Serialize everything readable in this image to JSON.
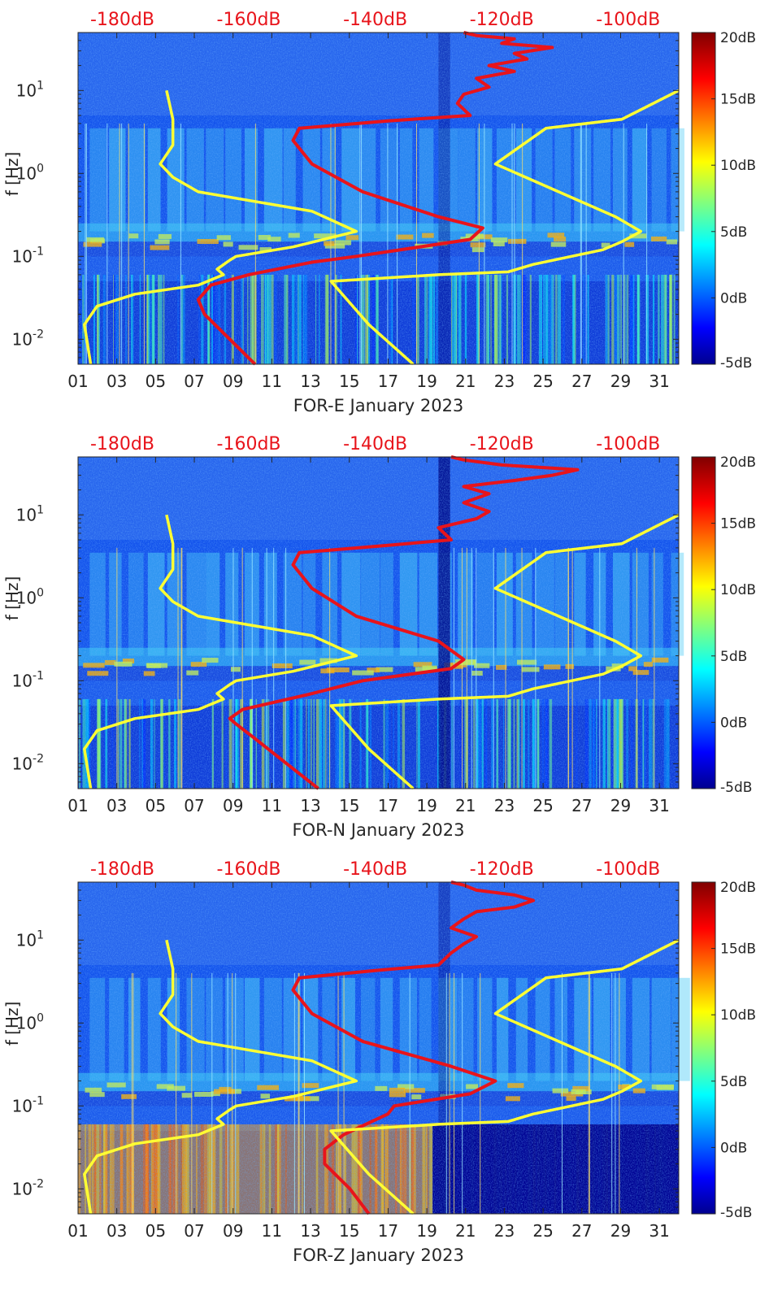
{
  "chart_data": [
    {
      "type": "heatmap",
      "station": "FOR-E",
      "xlabel": "FOR-E January 2023",
      "ylabel": "f [Hz]",
      "x_ticks": [
        "01",
        "03",
        "05",
        "07",
        "09",
        "11",
        "13",
        "15",
        "17",
        "19",
        "21",
        "23",
        "25",
        "27",
        "29",
        "31"
      ],
      "y_ticks": [
        "10^-2",
        "10^-1",
        "10^0",
        "10^1"
      ],
      "y_range_hz": [
        0.005,
        50
      ],
      "x_range_day": [
        1,
        32
      ],
      "top_axis_ticks": [
        "-180dB",
        "-160dB",
        "-140dB",
        "-120dB",
        "-100dB"
      ],
      "top_axis_range_db": [
        -187,
        -92
      ],
      "colorbar_ticks": [
        "20dB",
        "15dB",
        "10dB",
        "5dB",
        "0dB",
        "-5dB"
      ],
      "colorbar_range_db": [
        -5,
        20
      ],
      "colorscale": "jet",
      "series": [
        {
          "color": "#e8141b",
          "kind": "median PSD (dB, top axis)",
          "points": [
            [
              -159,
              0.005
            ],
            [
              -163,
              0.01
            ],
            [
              -167,
              0.02
            ],
            [
              -168,
              0.03
            ],
            [
              -166,
              0.045
            ],
            [
              -160,
              0.06
            ],
            [
              -150,
              0.085
            ],
            [
              -143,
              0.1
            ],
            [
              -125,
              0.16
            ],
            [
              -123,
              0.22
            ],
            [
              -130,
              0.3
            ],
            [
              -142,
              0.6
            ],
            [
              -150,
              1.3
            ],
            [
              -153,
              2.5
            ],
            [
              -152,
              3.5
            ],
            [
              -138,
              4.3
            ],
            [
              -125,
              5
            ],
            [
              -127,
              7
            ],
            [
              -126,
              9
            ],
            [
              -122,
              11
            ],
            [
              -124,
              14
            ],
            [
              -118,
              17
            ],
            [
              -122,
              20
            ],
            [
              -116,
              24
            ],
            [
              -118,
              28
            ],
            [
              -112,
              33
            ],
            [
              -120,
              37
            ],
            [
              -118,
              42
            ],
            [
              -124,
              46
            ],
            [
              -126,
              50
            ]
          ]
        },
        {
          "color": "#ffff33",
          "kind": "low noise model (dB, top axis)",
          "points": [
            [
              -185,
              0.005
            ],
            [
              -186,
              0.015
            ],
            [
              -184,
              0.025
            ],
            [
              -178,
              0.035
            ],
            [
              -168,
              0.045
            ],
            [
              -164,
              0.06
            ],
            [
              -165,
              0.07
            ],
            [
              -163,
              0.09
            ],
            [
              -162,
              0.1
            ],
            [
              -153,
              0.13
            ],
            [
              -143,
              0.2
            ],
            [
              -150,
              0.35
            ],
            [
              -168,
              0.6
            ],
            [
              -172,
              0.9
            ],
            [
              -174,
              1.3
            ],
            [
              -172,
              2.2
            ],
            [
              -172,
              4.5
            ],
            [
              -173,
              10
            ]
          ]
        },
        {
          "color": "#ffff33",
          "kind": "high noise model (dB, top axis)",
          "points": [
            [
              -134,
              0.005
            ],
            [
              -141,
              0.015
            ],
            [
              -147,
              0.05
            ],
            [
              -130,
              0.06
            ],
            [
              -119,
              0.065
            ],
            [
              -115,
              0.08
            ],
            [
              -104,
              0.12
            ],
            [
              -101,
              0.15
            ],
            [
              -98,
              0.2
            ],
            [
              -102,
              0.3
            ],
            [
              -121,
              1.3
            ],
            [
              -113,
              3.5
            ],
            [
              -101,
              4.5
            ],
            [
              -92,
              10
            ]
          ]
        }
      ]
    },
    {
      "type": "heatmap",
      "station": "FOR-N",
      "xlabel": "FOR-N January 2023",
      "ylabel": "f [Hz]",
      "x_ticks": [
        "01",
        "03",
        "05",
        "07",
        "09",
        "11",
        "13",
        "15",
        "17",
        "19",
        "21",
        "23",
        "25",
        "27",
        "29",
        "31"
      ],
      "y_ticks": [
        "10^-2",
        "10^-1",
        "10^0",
        "10^1"
      ],
      "y_range_hz": [
        0.005,
        50
      ],
      "x_range_day": [
        1,
        32
      ],
      "top_axis_ticks": [
        "-180dB",
        "-160dB",
        "-140dB",
        "-120dB",
        "-100dB"
      ],
      "top_axis_range_db": [
        -187,
        -92
      ],
      "colorbar_ticks": [
        "20dB",
        "15dB",
        "10dB",
        "5dB",
        "0dB",
        "-5dB"
      ],
      "colorbar_range_db": [
        -5,
        20
      ],
      "colorscale": "jet",
      "series": [
        {
          "color": "#e8141b",
          "kind": "median PSD (dB, top axis)",
          "points": [
            [
              -149,
              0.005
            ],
            [
              -154,
              0.01
            ],
            [
              -159,
              0.02
            ],
            [
              -162,
              0.03
            ],
            [
              -163,
              0.035
            ],
            [
              -161,
              0.045
            ],
            [
              -150,
              0.07
            ],
            [
              -142,
              0.1
            ],
            [
              -128,
              0.14
            ],
            [
              -126,
              0.18
            ],
            [
              -130,
              0.3
            ],
            [
              -143,
              0.6
            ],
            [
              -150,
              1.3
            ],
            [
              -153,
              2.5
            ],
            [
              -152,
              3.5
            ],
            [
              -138,
              4.3
            ],
            [
              -128,
              5
            ],
            [
              -130,
              7
            ],
            [
              -124,
              9
            ],
            [
              -122,
              11
            ],
            [
              -126,
              14
            ],
            [
              -122,
              18
            ],
            [
              -126,
              22
            ],
            [
              -118,
              26
            ],
            [
              -112,
              30
            ],
            [
              -108,
              35
            ],
            [
              -120,
              40
            ],
            [
              -126,
              46
            ],
            [
              -128,
              50
            ]
          ]
        },
        {
          "color": "#ffff33",
          "kind": "low noise model (dB, top axis)",
          "points": [
            [
              -185,
              0.005
            ],
            [
              -186,
              0.015
            ],
            [
              -184,
              0.025
            ],
            [
              -178,
              0.035
            ],
            [
              -168,
              0.045
            ],
            [
              -164,
              0.06
            ],
            [
              -165,
              0.07
            ],
            [
              -163,
              0.09
            ],
            [
              -162,
              0.1
            ],
            [
              -153,
              0.13
            ],
            [
              -143,
              0.2
            ],
            [
              -150,
              0.35
            ],
            [
              -168,
              0.6
            ],
            [
              -172,
              0.9
            ],
            [
              -174,
              1.3
            ],
            [
              -172,
              2.2
            ],
            [
              -172,
              4.5
            ],
            [
              -173,
              10
            ]
          ]
        },
        {
          "color": "#ffff33",
          "kind": "high noise model (dB, top axis)",
          "points": [
            [
              -134,
              0.005
            ],
            [
              -141,
              0.015
            ],
            [
              -147,
              0.05
            ],
            [
              -130,
              0.06
            ],
            [
              -119,
              0.065
            ],
            [
              -115,
              0.08
            ],
            [
              -104,
              0.12
            ],
            [
              -101,
              0.15
            ],
            [
              -98,
              0.2
            ],
            [
              -102,
              0.3
            ],
            [
              -121,
              1.3
            ],
            [
              -113,
              3.5
            ],
            [
              -101,
              4.5
            ],
            [
              -92,
              10
            ]
          ]
        }
      ]
    },
    {
      "type": "heatmap",
      "station": "FOR-Z",
      "xlabel": "FOR-Z January 2023",
      "ylabel": "f [Hz]",
      "x_ticks": [
        "01",
        "03",
        "05",
        "07",
        "09",
        "11",
        "13",
        "15",
        "17",
        "19",
        "21",
        "23",
        "25",
        "27",
        "29",
        "31"
      ],
      "y_ticks": [
        "10^-2",
        "10^-1",
        "10^0",
        "10^1"
      ],
      "y_range_hz": [
        0.005,
        50
      ],
      "x_range_day": [
        1,
        32
      ],
      "top_axis_ticks": [
        "-180dB",
        "-160dB",
        "-140dB",
        "-120dB",
        "-100dB"
      ],
      "top_axis_range_db": [
        -187,
        -92
      ],
      "colorbar_ticks": [
        "20dB",
        "15dB",
        "10dB",
        "5dB",
        "0dB",
        "-5dB"
      ],
      "colorbar_range_db": [
        -5,
        20
      ],
      "colorscale": "jet",
      "series": [
        {
          "color": "#e8141b",
          "kind": "median PSD (dB, top axis)",
          "points": [
            [
              -141,
              0.005
            ],
            [
              -144,
              0.01
            ],
            [
              -148,
              0.02
            ],
            [
              -148,
              0.03
            ],
            [
              -145,
              0.045
            ],
            [
              -138,
              0.08
            ],
            [
              -137,
              0.1
            ],
            [
              -125,
              0.14
            ],
            [
              -121,
              0.2
            ],
            [
              -128,
              0.3
            ],
            [
              -142,
              0.6
            ],
            [
              -150,
              1.3
            ],
            [
              -153,
              2.5
            ],
            [
              -152,
              3.5
            ],
            [
              -140,
              4.3
            ],
            [
              -130,
              5
            ],
            [
              -128,
              7
            ],
            [
              -126,
              9
            ],
            [
              -124,
              11
            ],
            [
              -128,
              14
            ],
            [
              -126,
              18
            ],
            [
              -124,
              22
            ],
            [
              -118,
              25
            ],
            [
              -115,
              30
            ],
            [
              -118,
              35
            ],
            [
              -124,
              40
            ],
            [
              -126,
              46
            ],
            [
              -128,
              50
            ]
          ]
        },
        {
          "color": "#ffff33",
          "kind": "low noise model (dB, top axis)",
          "points": [
            [
              -185,
              0.005
            ],
            [
              -186,
              0.015
            ],
            [
              -184,
              0.025
            ],
            [
              -178,
              0.035
            ],
            [
              -168,
              0.045
            ],
            [
              -164,
              0.06
            ],
            [
              -165,
              0.07
            ],
            [
              -163,
              0.09
            ],
            [
              -162,
              0.1
            ],
            [
              -153,
              0.13
            ],
            [
              -143,
              0.2
            ],
            [
              -150,
              0.35
            ],
            [
              -168,
              0.6
            ],
            [
              -172,
              0.9
            ],
            [
              -174,
              1.3
            ],
            [
              -172,
              2.2
            ],
            [
              -172,
              4.5
            ],
            [
              -173,
              10
            ]
          ]
        },
        {
          "color": "#ffff33",
          "kind": "high noise model (dB, top axis)",
          "points": [
            [
              -134,
              0.005
            ],
            [
              -141,
              0.015
            ],
            [
              -147,
              0.05
            ],
            [
              -130,
              0.06
            ],
            [
              -119,
              0.065
            ],
            [
              -115,
              0.08
            ],
            [
              -104,
              0.12
            ],
            [
              -101,
              0.15
            ],
            [
              -98,
              0.2
            ],
            [
              -102,
              0.3
            ],
            [
              -121,
              1.3
            ],
            [
              -113,
              3.5
            ],
            [
              -101,
              4.5
            ],
            [
              -92,
              10
            ]
          ]
        }
      ]
    }
  ]
}
